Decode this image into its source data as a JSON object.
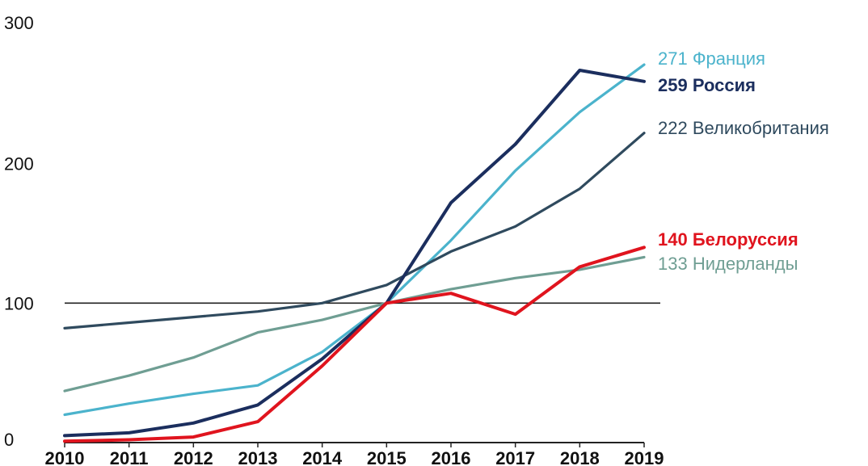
{
  "chart_data": {
    "type": "line",
    "x": [
      "2010",
      "2011",
      "2012",
      "2013",
      "2014",
      "2015",
      "2016",
      "2017",
      "2018",
      "2019"
    ],
    "ylim": [
      0,
      300
    ],
    "y_ticks": [
      "0",
      "100",
      "200",
      "300"
    ],
    "reference_line": 100,
    "grid": false,
    "series": [
      {
        "name": "Франция",
        "end_label": "271 Франция",
        "color": "#4bb3cc",
        "bold": false,
        "values": [
          20,
          28,
          35,
          41,
          65,
          100,
          145,
          195,
          237,
          271
        ]
      },
      {
        "name": "Россия",
        "end_label": "259 Россия",
        "color": "#1b2e5e",
        "bold": true,
        "values": [
          5,
          7,
          14,
          27,
          60,
          100,
          172,
          214,
          267,
          259
        ]
      },
      {
        "name": "Великобритания",
        "end_label": "222 Великобритания",
        "color": "#2f4a5e",
        "bold": false,
        "values": [
          82,
          86,
          90,
          94,
          100,
          113,
          137,
          155,
          182,
          222
        ]
      },
      {
        "name": "Белоруссия",
        "end_label": "140  Белоруссия",
        "color": "#e0141e",
        "bold": true,
        "values": [
          1,
          2,
          4,
          15,
          55,
          100,
          107,
          92,
          126,
          140
        ]
      },
      {
        "name": "Нидерланды",
        "end_label": "133 Нидерланды",
        "color": "#6f9e93",
        "bold": false,
        "values": [
          37,
          48,
          61,
          79,
          88,
          100,
          110,
          118,
          124,
          133
        ]
      }
    ]
  }
}
